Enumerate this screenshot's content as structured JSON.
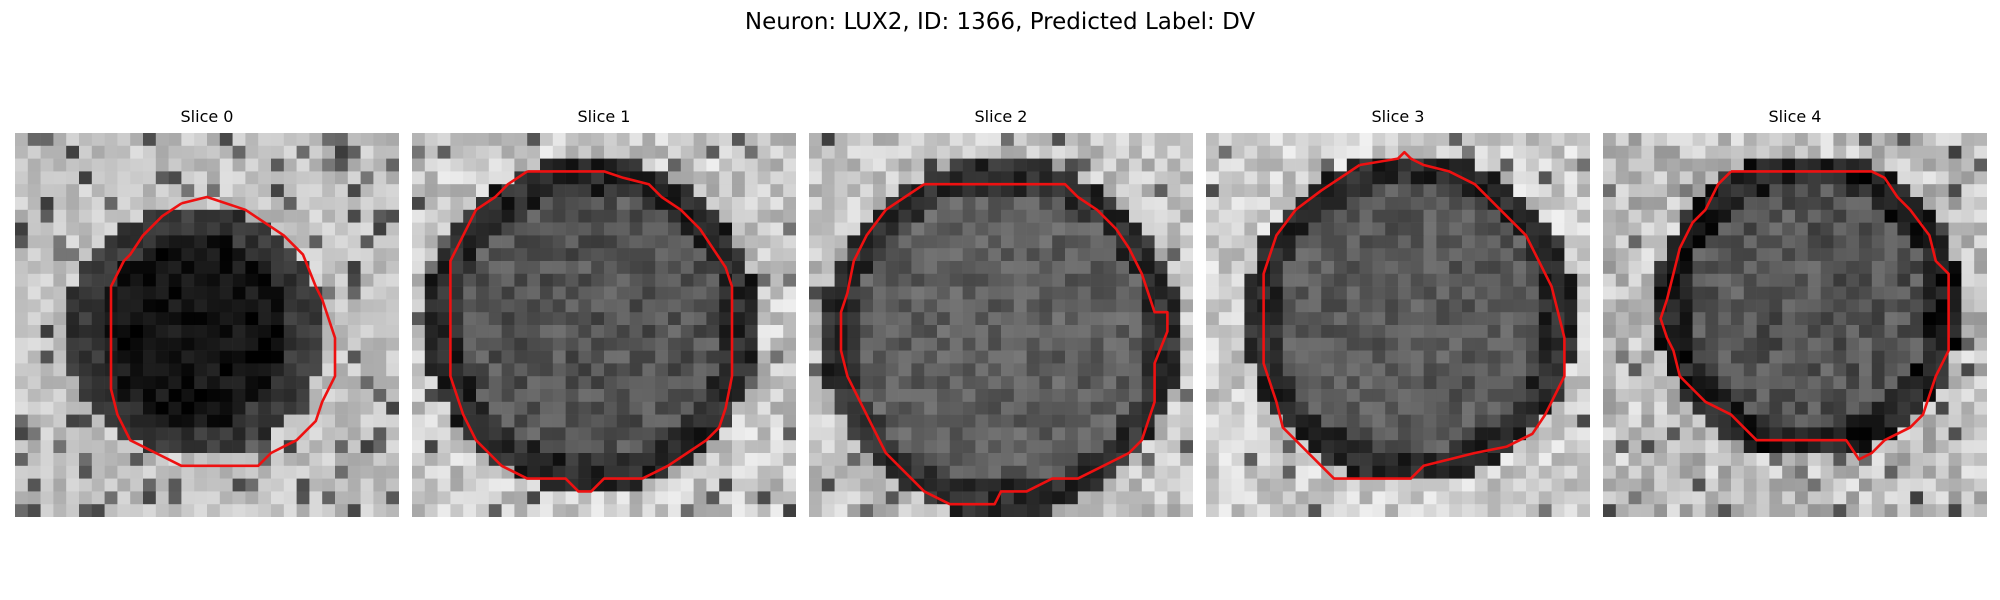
{
  "figure": {
    "title": "Neuron: LUX2, ID: 1366, Predicted Label: DV"
  },
  "panels": [
    {
      "title": "Slice 0",
      "contour_color": "#ee1111"
    },
    {
      "title": "Slice 1",
      "contour_color": "#ee1111"
    },
    {
      "title": "Slice 2",
      "contour_color": "#ee1111"
    },
    {
      "title": "Slice 3",
      "contour_color": "#ee1111"
    },
    {
      "title": "Slice 4",
      "contour_color": "#ee1111"
    }
  ]
}
